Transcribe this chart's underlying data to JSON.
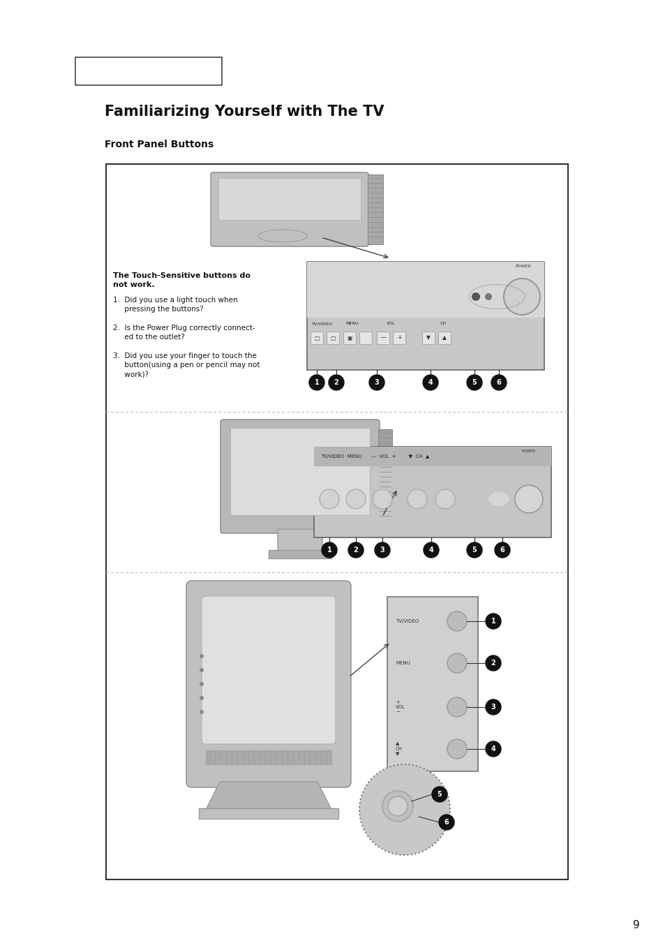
{
  "page_bg": "#ffffff",
  "title": "Familiarizing Yourself with The TV",
  "subtitle": "Front Panel Buttons",
  "page_number": "9",
  "title_fontsize": 15,
  "subtitle_fontsize": 10,
  "note_title": "The Touch-Sensitive buttons do\nnot work.",
  "note_line1": "1.  Did you use a light touch when\n     pressing the buttons?",
  "note_line2": "2.  Is the Power Plug correctly connect-\n     ed to the outlet?",
  "note_line3": "3.  Did you use your finger to touch the\n     button(using a pen or pencil may not\n     work)?",
  "box_border": "#333333",
  "dashed_border": "#999999",
  "label_bg": "#111111",
  "label_fg": "#ffffff",
  "panel_bg": "#bebebe",
  "panel_light": "#d8d8d8",
  "panel_dark": "#a8a8a8",
  "tv_gray": "#b8b8b8",
  "tv_light": "#d0d0d0",
  "tv_dark": "#909090",
  "button_gray": "#c8c8c8",
  "screen_color": "#e0e0e0"
}
